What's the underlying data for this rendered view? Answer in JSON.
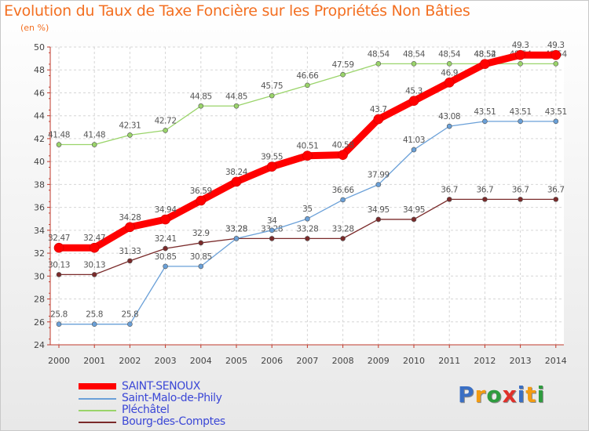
{
  "header": {
    "title": "Evolution du Taux de Taxe Foncière sur les Propriétés Non Bâties",
    "unit": "(en %)"
  },
  "logo": {
    "text": "Proxiti",
    "letters": [
      "P",
      "r",
      "o",
      "x",
      "i",
      "t",
      "i"
    ]
  },
  "chart_data": {
    "type": "line",
    "title": "Evolution du Taux de Taxe Foncière sur les Propriétés Non Bâties",
    "ylabel": "(en %)",
    "xlabel": "",
    "ylim": [
      24,
      50
    ],
    "yticks": [
      24,
      26,
      28,
      30,
      32,
      34,
      36,
      38,
      40,
      42,
      44,
      46,
      48,
      50
    ],
    "x": [
      "2000",
      "2001",
      "2002",
      "2003",
      "2004",
      "2005",
      "2006",
      "2007",
      "2008",
      "2009",
      "2010",
      "2011",
      "2012",
      "2013",
      "2014"
    ],
    "grid": true,
    "legend_position": "bottom-left",
    "series": [
      {
        "name": "SAINT-SENOUX",
        "color": "#ff0000",
        "values": [
          32.47,
          32.47,
          34.28,
          34.94,
          36.59,
          38.24,
          39.55,
          40.51,
          40.58,
          43.7,
          45.3,
          46.9,
          48.52,
          49.3,
          49.3
        ]
      },
      {
        "name": "Saint-Malo-de-Phily",
        "color": "#6aa0d8",
        "values": [
          25.8,
          25.8,
          25.8,
          30.85,
          30.85,
          33.28,
          34,
          35,
          36.66,
          37.99,
          41.03,
          43.08,
          43.51,
          43.51,
          43.51
        ]
      },
      {
        "name": "Pléchâtel",
        "color": "#9ad46a",
        "values": [
          41.48,
          41.48,
          42.31,
          42.72,
          44.85,
          44.85,
          45.75,
          46.66,
          47.59,
          48.54,
          48.54,
          48.54,
          48.54,
          48.54,
          48.54
        ]
      },
      {
        "name": "Bourg-des-Comptes",
        "color": "#7a2a2a",
        "values": [
          30.13,
          30.13,
          31.33,
          32.41,
          32.9,
          33.28,
          33.28,
          33.28,
          33.28,
          34.95,
          34.95,
          36.7,
          36.7,
          36.7,
          36.7
        ]
      }
    ]
  }
}
